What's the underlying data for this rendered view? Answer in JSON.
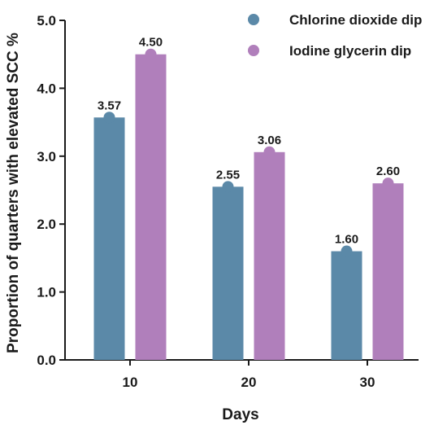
{
  "chart_data": {
    "type": "bar",
    "title": "",
    "xlabel": "Days",
    "ylabel": "Proportion of quarters with elevated SCC %",
    "categories": [
      "10",
      "20",
      "30"
    ],
    "ylim": [
      0,
      5
    ],
    "yticks": [
      "0.0",
      "1.0",
      "2.0",
      "3.0",
      "4.0",
      "5.0"
    ],
    "grid": false,
    "legend_position": "top-right",
    "series": [
      {
        "name": "Chlorine dioxide dip",
        "color": "#5b89a8",
        "values": [
          3.57,
          2.55,
          1.6
        ],
        "labels": [
          "3.57",
          "2.55",
          "1.60"
        ]
      },
      {
        "name": "Iodine glycerin dip",
        "color": "#b07fbb",
        "values": [
          4.5,
          3.06,
          2.6
        ],
        "labels": [
          "4.50",
          "3.06",
          "2.60"
        ]
      }
    ]
  }
}
